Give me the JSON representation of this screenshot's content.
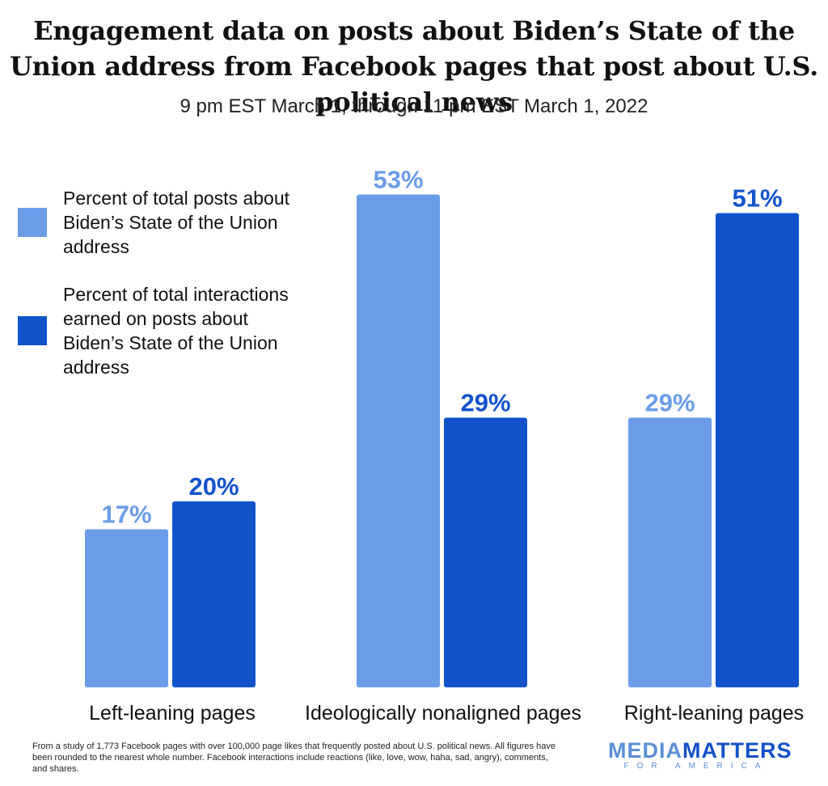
{
  "colors": {
    "posts": "#6b9ce8",
    "interactions": "#1253cc"
  },
  "legend": {
    "posts_label": "Percent of total posts about Biden’s State of the Union address",
    "interactions_label": "Percent of total interactions earned on posts about Biden’s State of the Union address"
  },
  "chart_data": {
    "type": "bar",
    "title": "Engagement data on posts about Biden’s State of the Union address from Facebook pages that post about U.S. political news",
    "subtitle": "9 pm EST March 1, through 11 pm EST March 1, 2022",
    "categories": [
      "Left-leaning pages",
      "Ideologically nonaligned pages",
      "Right-leaning pages"
    ],
    "series": [
      {
        "name": "Percent of total posts about Biden’s State of the Union address",
        "values": [
          17,
          53,
          29
        ],
        "labels": [
          "17%",
          "53%",
          "29%"
        ]
      },
      {
        "name": "Percent of total interactions earned on posts about Biden’s State of the Union address",
        "values": [
          20,
          29,
          51
        ],
        "labels": [
          "20%",
          "29%",
          "51%"
        ]
      }
    ],
    "xlabel": "",
    "ylabel": "",
    "ylim": [
      0,
      60
    ],
    "grid": false,
    "legend_position": "left"
  },
  "footnote": "From a study of 1,773 Facebook pages with over 100,000 page likes that frequently posted about U.S. political news. All figures have been rounded to the nearest whole number. Facebook interactions include reactions (like, love, wow, haha, sad, angry), comments, and shares.",
  "logo": {
    "media": "MEDIA",
    "matters": "MATTERS",
    "sub": "FOR AMERICA"
  }
}
